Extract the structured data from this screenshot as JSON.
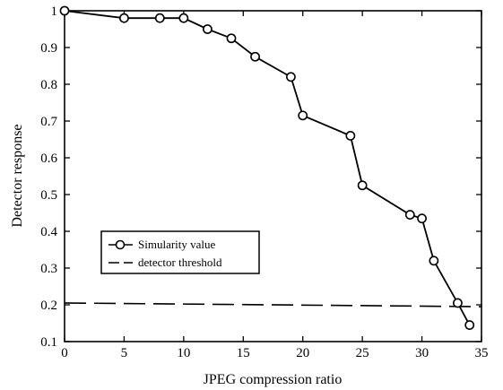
{
  "chart_data": {
    "type": "line",
    "xlabel": "JPEG compression ratio",
    "ylabel": "Detector response",
    "xlim": [
      0,
      35
    ],
    "ylim": [
      0.1,
      1
    ],
    "x_ticks": [
      0,
      5,
      10,
      15,
      20,
      25,
      30,
      35
    ],
    "y_ticks": [
      0.1,
      0.2,
      0.3,
      0.4,
      0.5,
      0.6,
      0.7,
      0.8,
      0.9,
      1
    ],
    "y_tick_labels": [
      "0.1",
      "0.2",
      "0.3",
      "0.4",
      "0.5",
      "0.6",
      "0.7",
      "0.8",
      "0.9",
      "1"
    ],
    "grid": false,
    "legend_position": "center-left",
    "series": [
      {
        "name": "Simularity value",
        "style": "solid line with circle markers",
        "color": "#000000",
        "x": [
          0,
          5,
          8,
          10,
          12,
          14,
          16,
          19,
          20,
          24,
          25,
          29,
          30,
          31,
          33,
          34
        ],
        "y": [
          1.0,
          0.98,
          0.98,
          0.98,
          0.95,
          0.925,
          0.875,
          0.82,
          0.715,
          0.66,
          0.525,
          0.445,
          0.435,
          0.32,
          0.205,
          0.145
        ]
      },
      {
        "name": "detector threshold",
        "style": "dashed line",
        "color": "#000000",
        "x": [
          0,
          35
        ],
        "y": [
          0.205,
          0.195
        ]
      }
    ]
  }
}
